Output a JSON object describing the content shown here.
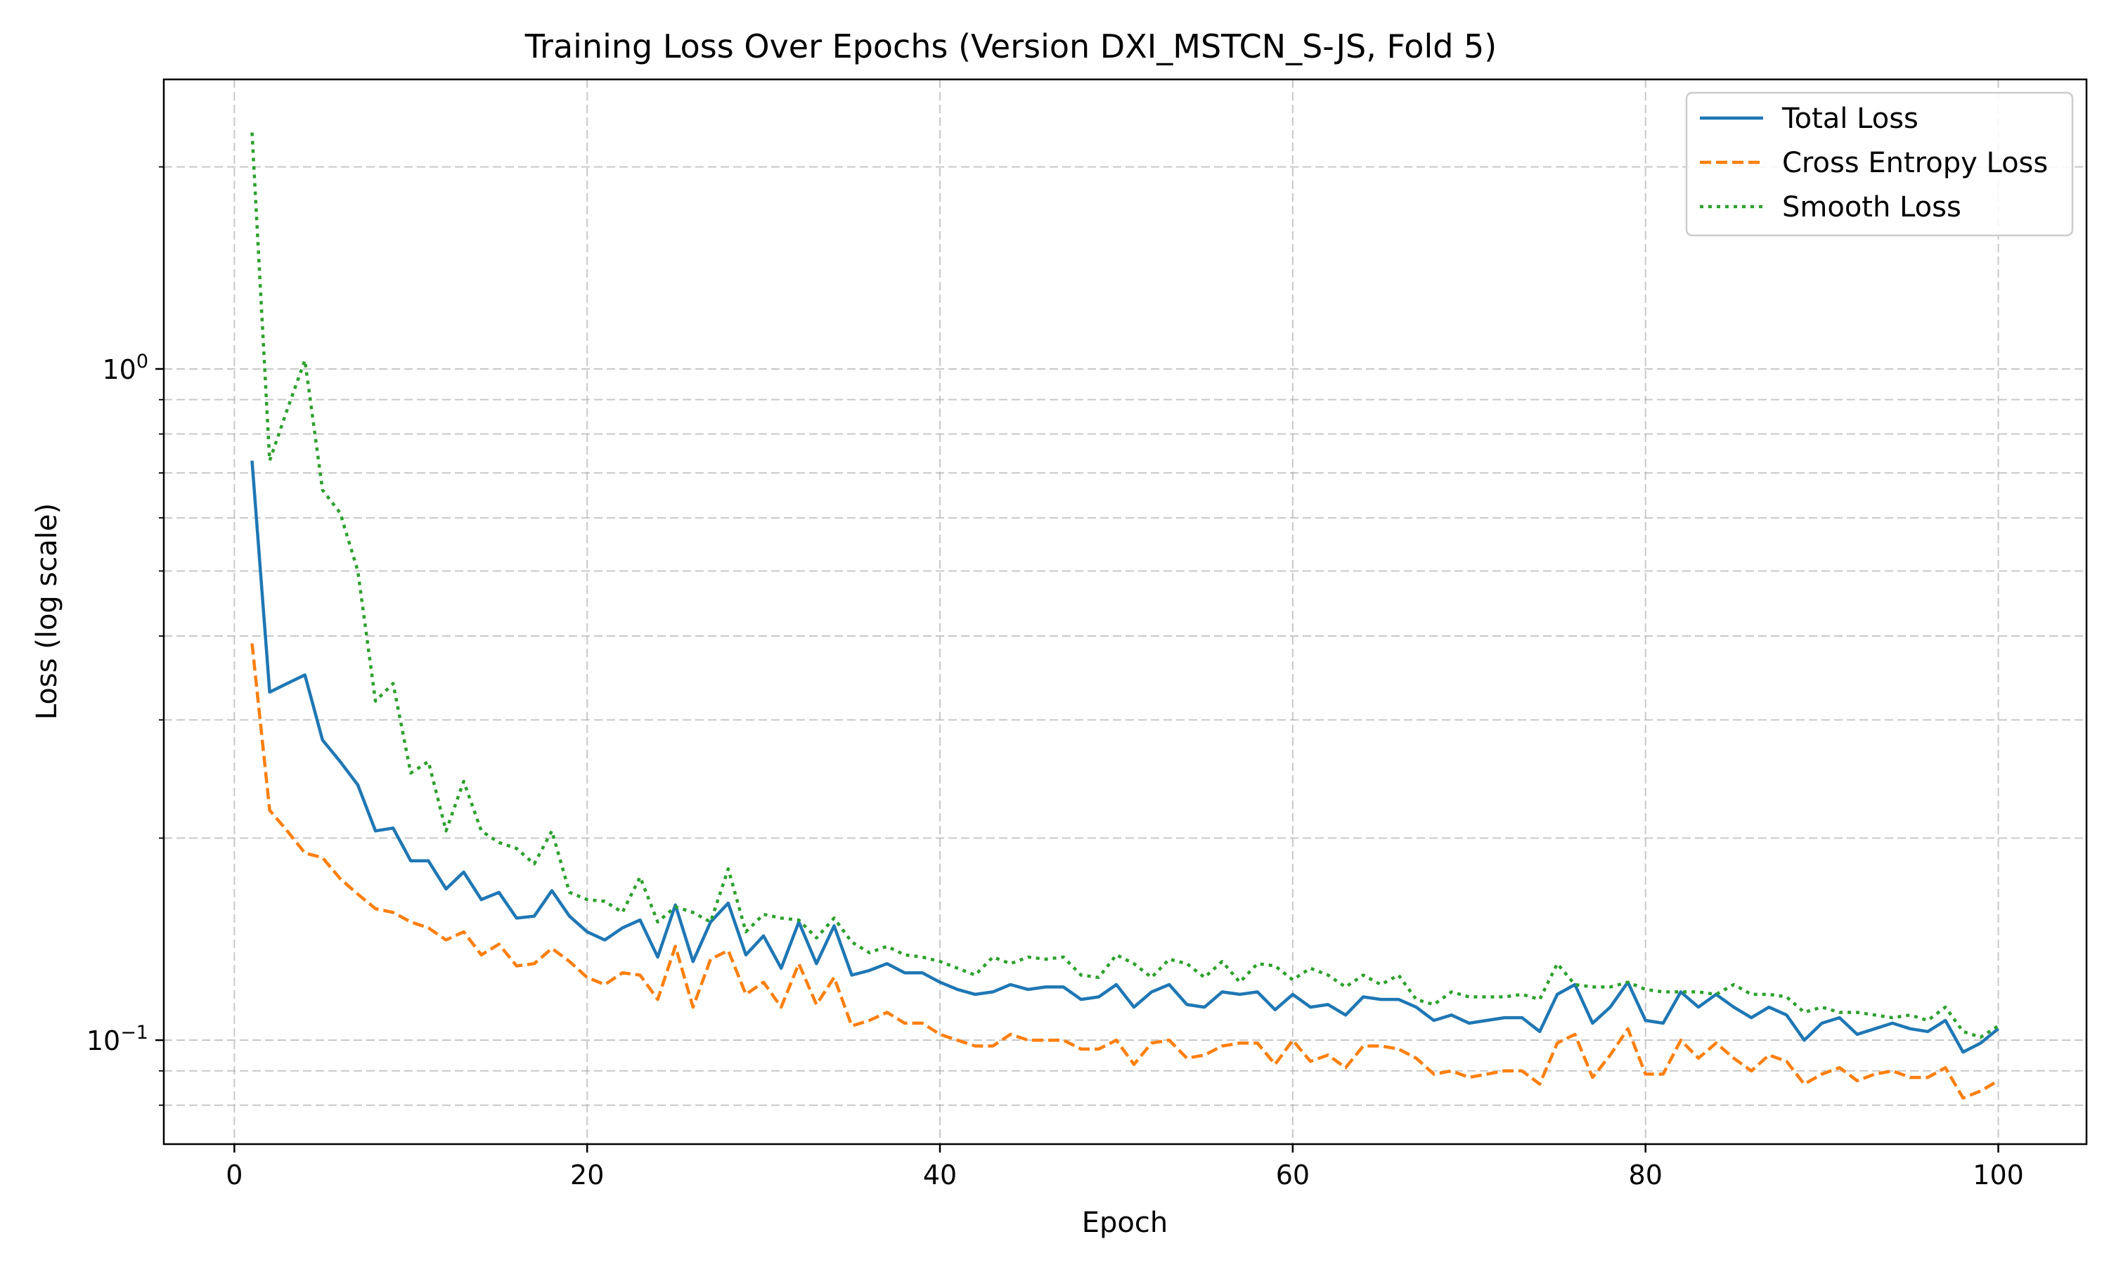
{
  "chart_data": {
    "type": "line",
    "title": "Training Loss Over Epochs (Version DXI_MSTCN_S-JS, Fold 5)",
    "xlabel": "Epoch",
    "ylabel": "Loss (log scale)",
    "yscale": "log",
    "xlim": [
      -4,
      105
    ],
    "ylim": [
      0.07,
      2.7
    ],
    "xticks": [
      0,
      20,
      40,
      60,
      80,
      100
    ],
    "yticks": [
      {
        "value": 1.0,
        "base": "10",
        "exp": "0"
      },
      {
        "value": 0.1,
        "base": "10",
        "exp": "−1"
      }
    ],
    "grid": true,
    "legend_position": "top-right",
    "x": [
      1,
      2,
      3,
      4,
      5,
      6,
      7,
      8,
      9,
      10,
      11,
      12,
      13,
      14,
      15,
      16,
      17,
      18,
      19,
      20,
      21,
      22,
      23,
      24,
      25,
      26,
      27,
      28,
      29,
      30,
      31,
      32,
      33,
      34,
      35,
      36,
      37,
      38,
      39,
      40,
      41,
      42,
      43,
      44,
      45,
      46,
      47,
      48,
      49,
      50,
      51,
      52,
      53,
      54,
      55,
      56,
      57,
      58,
      59,
      60,
      61,
      62,
      63,
      64,
      65,
      66,
      67,
      68,
      69,
      70,
      71,
      72,
      73,
      74,
      75,
      76,
      77,
      78,
      79,
      80,
      81,
      82,
      83,
      84,
      85,
      86,
      87,
      88,
      89,
      90,
      91,
      92,
      93,
      94,
      95,
      96,
      97,
      98,
      99,
      100
    ],
    "series": [
      {
        "name": "Total Loss",
        "color": "#1f77b4",
        "dash": "solid",
        "values": [
          0.73,
          0.33,
          0.34,
          0.35,
          0.28,
          0.26,
          0.24,
          0.205,
          0.207,
          0.185,
          0.185,
          0.168,
          0.178,
          0.162,
          0.166,
          0.152,
          0.153,
          0.167,
          0.153,
          0.145,
          0.141,
          0.147,
          0.151,
          0.133,
          0.159,
          0.131,
          0.15,
          0.16,
          0.134,
          0.143,
          0.128,
          0.15,
          0.13,
          0.148,
          0.125,
          0.127,
          0.13,
          0.126,
          0.126,
          0.122,
          0.119,
          0.117,
          0.118,
          0.121,
          0.119,
          0.12,
          0.12,
          0.115,
          0.116,
          0.121,
          0.112,
          0.118,
          0.121,
          0.113,
          0.112,
          0.118,
          0.117,
          0.118,
          0.111,
          0.117,
          0.112,
          0.113,
          0.109,
          0.116,
          0.115,
          0.115,
          0.112,
          0.107,
          0.109,
          0.106,
          0.107,
          0.108,
          0.108,
          0.103,
          0.117,
          0.121,
          0.106,
          0.112,
          0.122,
          0.107,
          0.106,
          0.118,
          0.112,
          0.117,
          0.112,
          0.108,
          0.112,
          0.109,
          0.1,
          0.106,
          0.108,
          0.102,
          0.104,
          0.106,
          0.104,
          0.103,
          0.107,
          0.096,
          0.099,
          0.104
        ]
      },
      {
        "name": "Cross Entropy Loss",
        "color": "#ff7f0e",
        "dash": "dashed",
        "values": [
          0.39,
          0.22,
          0.205,
          0.19,
          0.187,
          0.174,
          0.165,
          0.157,
          0.155,
          0.15,
          0.147,
          0.141,
          0.145,
          0.134,
          0.139,
          0.129,
          0.13,
          0.137,
          0.131,
          0.124,
          0.121,
          0.126,
          0.125,
          0.115,
          0.138,
          0.112,
          0.132,
          0.136,
          0.117,
          0.122,
          0.112,
          0.13,
          0.113,
          0.124,
          0.105,
          0.107,
          0.11,
          0.106,
          0.106,
          0.102,
          0.1,
          0.098,
          0.098,
          0.102,
          0.1,
          0.1,
          0.1,
          0.097,
          0.097,
          0.1,
          0.092,
          0.099,
          0.1,
          0.094,
          0.095,
          0.098,
          0.099,
          0.099,
          0.092,
          0.1,
          0.093,
          0.095,
          0.091,
          0.098,
          0.098,
          0.097,
          0.094,
          0.089,
          0.09,
          0.088,
          0.089,
          0.09,
          0.09,
          0.086,
          0.099,
          0.102,
          0.088,
          0.095,
          0.104,
          0.089,
          0.089,
          0.1,
          0.094,
          0.099,
          0.094,
          0.09,
          0.095,
          0.093,
          0.086,
          0.089,
          0.091,
          0.087,
          0.089,
          0.09,
          0.088,
          0.088,
          0.091,
          0.082,
          0.084,
          0.087
        ]
      },
      {
        "name": "Smooth Loss",
        "color": "#2ca02c",
        "dash": "dotted",
        "values": [
          2.25,
          0.73,
          0.87,
          1.03,
          0.66,
          0.61,
          0.5,
          0.32,
          0.34,
          0.25,
          0.26,
          0.205,
          0.243,
          0.205,
          0.197,
          0.193,
          0.183,
          0.205,
          0.166,
          0.162,
          0.161,
          0.155,
          0.175,
          0.15,
          0.158,
          0.155,
          0.15,
          0.18,
          0.145,
          0.154,
          0.152,
          0.151,
          0.142,
          0.152,
          0.14,
          0.135,
          0.138,
          0.134,
          0.133,
          0.131,
          0.128,
          0.125,
          0.133,
          0.13,
          0.133,
          0.132,
          0.133,
          0.125,
          0.124,
          0.134,
          0.13,
          0.124,
          0.132,
          0.13,
          0.124,
          0.131,
          0.122,
          0.13,
          0.129,
          0.123,
          0.128,
          0.125,
          0.12,
          0.125,
          0.121,
          0.125,
          0.115,
          0.113,
          0.118,
          0.116,
          0.116,
          0.116,
          0.117,
          0.115,
          0.13,
          0.121,
          0.12,
          0.12,
          0.122,
          0.119,
          0.118,
          0.118,
          0.118,
          0.117,
          0.121,
          0.117,
          0.117,
          0.116,
          0.11,
          0.112,
          0.11,
          0.11,
          0.109,
          0.108,
          0.109,
          0.107,
          0.112,
          0.103,
          0.101,
          0.105
        ]
      }
    ]
  }
}
